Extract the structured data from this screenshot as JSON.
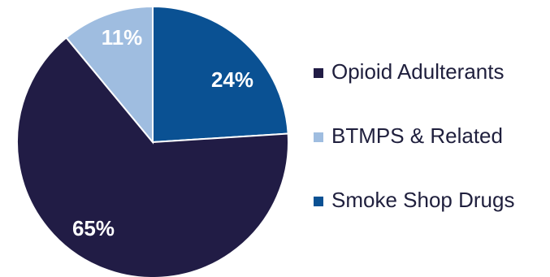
{
  "chart_data": {
    "type": "pie",
    "slices": [
      {
        "label": "Opioid Adulterants",
        "value": 65,
        "display": "65%",
        "color": "#211c45"
      },
      {
        "label": "BTMPS & Related",
        "value": 11,
        "display": "11%",
        "color": "#9fbde0"
      },
      {
        "label": "Smoke Shop Drugs",
        "value": 24,
        "display": "24%",
        "color": "#0a5193"
      }
    ],
    "legend_position": "right",
    "start_angle_deg": -90,
    "direction": "clockwise"
  }
}
